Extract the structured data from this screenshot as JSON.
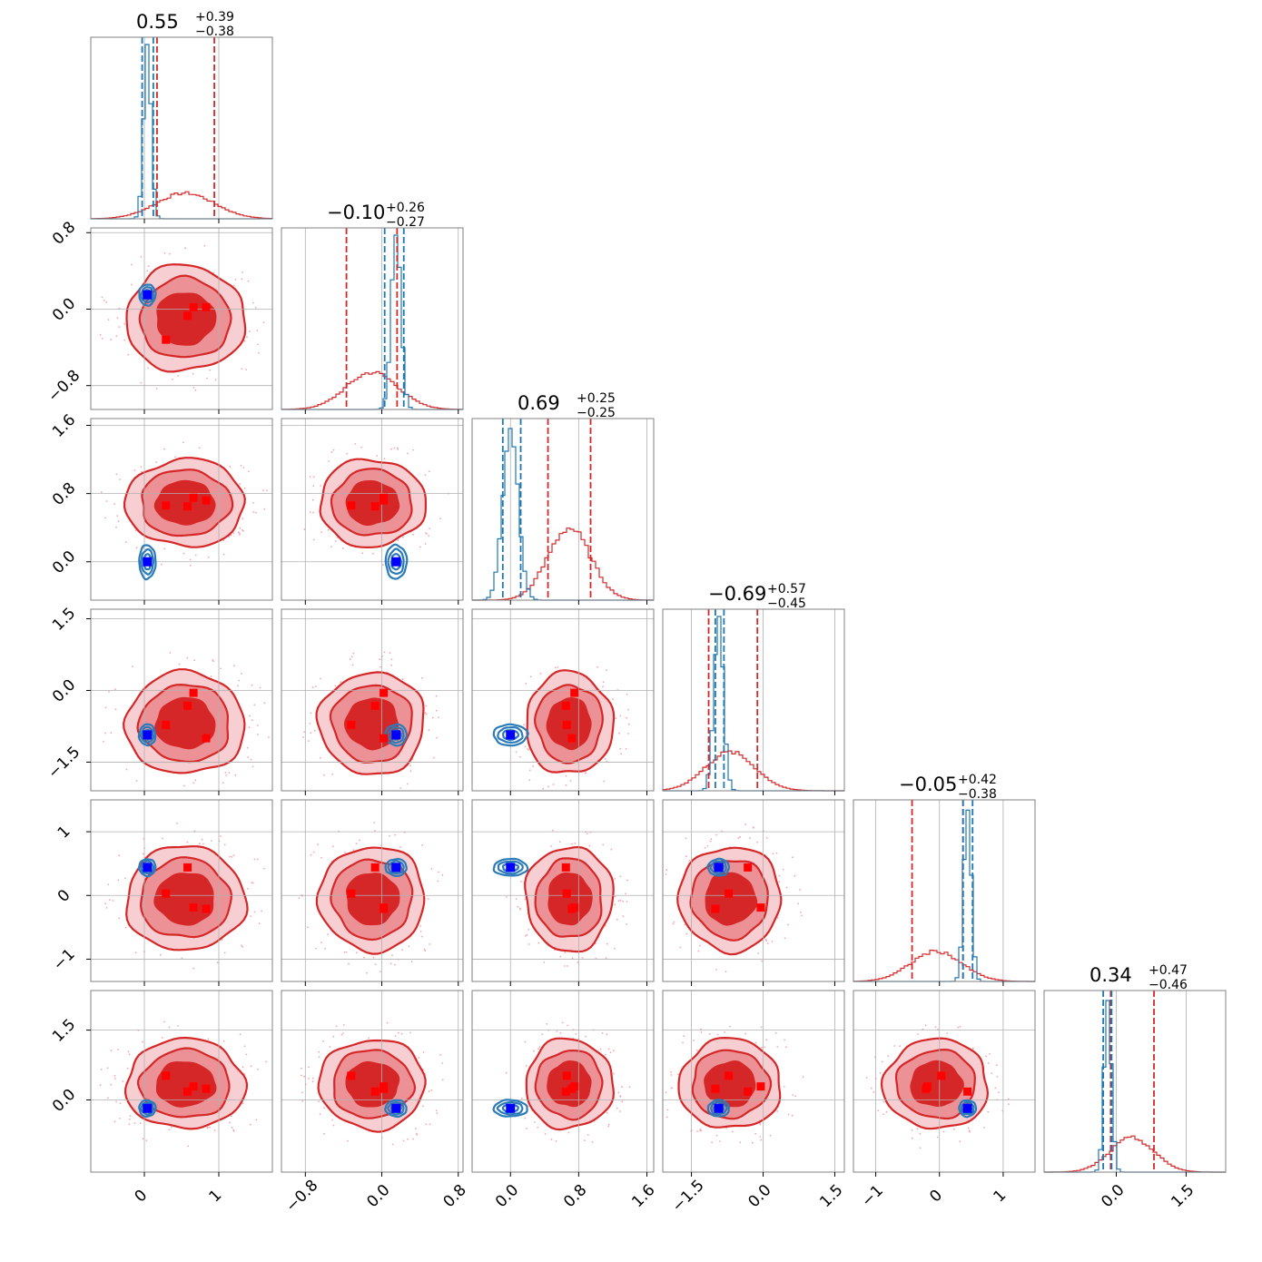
{
  "chart_data": {
    "type": "corner",
    "n_params": 6,
    "titles": [
      {
        "median": "0.55",
        "plus": "+0.39",
        "minus": "−0.38"
      },
      {
        "median": "−0.10",
        "plus": "+0.26",
        "minus": "−0.27"
      },
      {
        "median": "0.69",
        "plus": "+0.25",
        "minus": "−0.25"
      },
      {
        "median": "−0.69",
        "plus": "+0.57",
        "minus": "−0.45"
      },
      {
        "median": "−0.05",
        "plus": "+0.42",
        "minus": "−0.38"
      },
      {
        "median": "0.34",
        "plus": "+0.47",
        "minus": "−0.46"
      }
    ],
    "axes": [
      {
        "range": [
          -0.72,
          1.72
        ],
        "ticks": [
          0,
          1
        ],
        "tick_labels": [
          "0",
          "1"
        ]
      },
      {
        "range": [
          -1.05,
          0.85
        ],
        "ticks": [
          -0.8,
          0.0,
          0.8
        ],
        "tick_labels": [
          "−0.8",
          "0.0",
          "0.8"
        ]
      },
      {
        "range": [
          -0.45,
          1.68
        ],
        "ticks": [
          0.0,
          0.8,
          1.6
        ],
        "tick_labels": [
          "0.0",
          "0.8",
          "1.6"
        ]
      },
      {
        "range": [
          -2.1,
          1.7
        ],
        "ticks": [
          -1.5,
          0.0,
          1.5
        ],
        "tick_labels": [
          "−1.5",
          "0.0",
          "1.5"
        ]
      },
      {
        "range": [
          -1.35,
          1.5
        ],
        "ticks": [
          -1,
          0,
          1
        ],
        "tick_labels": [
          "−1",
          "0",
          "1"
        ]
      },
      {
        "range": [
          -1.55,
          2.35
        ],
        "ticks": [
          0.0,
          1.5
        ],
        "tick_labels": [
          "0.0",
          "1.5"
        ]
      }
    ],
    "posterior_red": {
      "color": "#d62728",
      "center": [
        0.55,
        -0.1,
        0.69,
        -0.69,
        -0.05,
        0.34
      ],
      "sigma": [
        0.39,
        0.27,
        0.25,
        0.52,
        0.4,
        0.47
      ],
      "quantiles": [
        [
          0.17,
          0.94
        ],
        [
          -0.37,
          0.16
        ],
        [
          0.44,
          0.94
        ],
        [
          -1.14,
          -0.12
        ],
        [
          -0.43,
          0.37
        ],
        [
          -0.12,
          0.81
        ]
      ]
    },
    "posterior_blue": {
      "color": "#1f77b4",
      "center": [
        0.04,
        0.15,
        0.0,
        -0.93,
        0.44,
        -0.18
      ],
      "sigma": [
        0.05,
        0.05,
        0.09,
        0.1,
        0.06,
        0.08
      ],
      "quantiles": [
        [
          -0.03,
          0.12
        ],
        [
          0.03,
          0.23
        ],
        [
          -0.09,
          0.12
        ],
        [
          -1.0,
          -0.82
        ],
        [
          0.37,
          0.52
        ],
        [
          -0.28,
          -0.1
        ]
      ]
    },
    "truth_blue": [
      0.04,
      0.15,
      0.0,
      -0.93,
      0.44,
      -0.18
    ],
    "red_markers": [
      [
        0.58,
        -0.07,
        0.65,
        -0.32,
        0.44,
        0.18
      ],
      [
        0.83,
        0.02,
        0.72,
        -1.0,
        -0.21,
        0.24
      ],
      [
        0.29,
        -0.32,
        0.66,
        -0.72,
        0.03,
        0.52
      ],
      [
        0.66,
        0.02,
        0.75,
        -0.05,
        -0.19,
        0.29
      ]
    ],
    "grid": true
  }
}
